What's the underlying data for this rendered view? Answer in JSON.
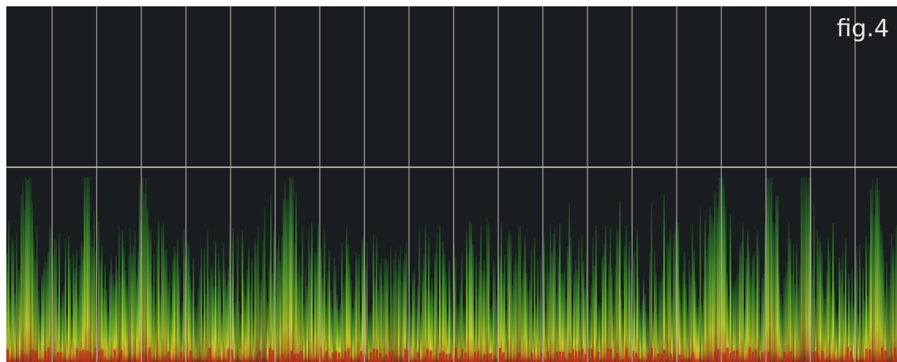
{
  "figure": {
    "label": "fig.4"
  }
}
